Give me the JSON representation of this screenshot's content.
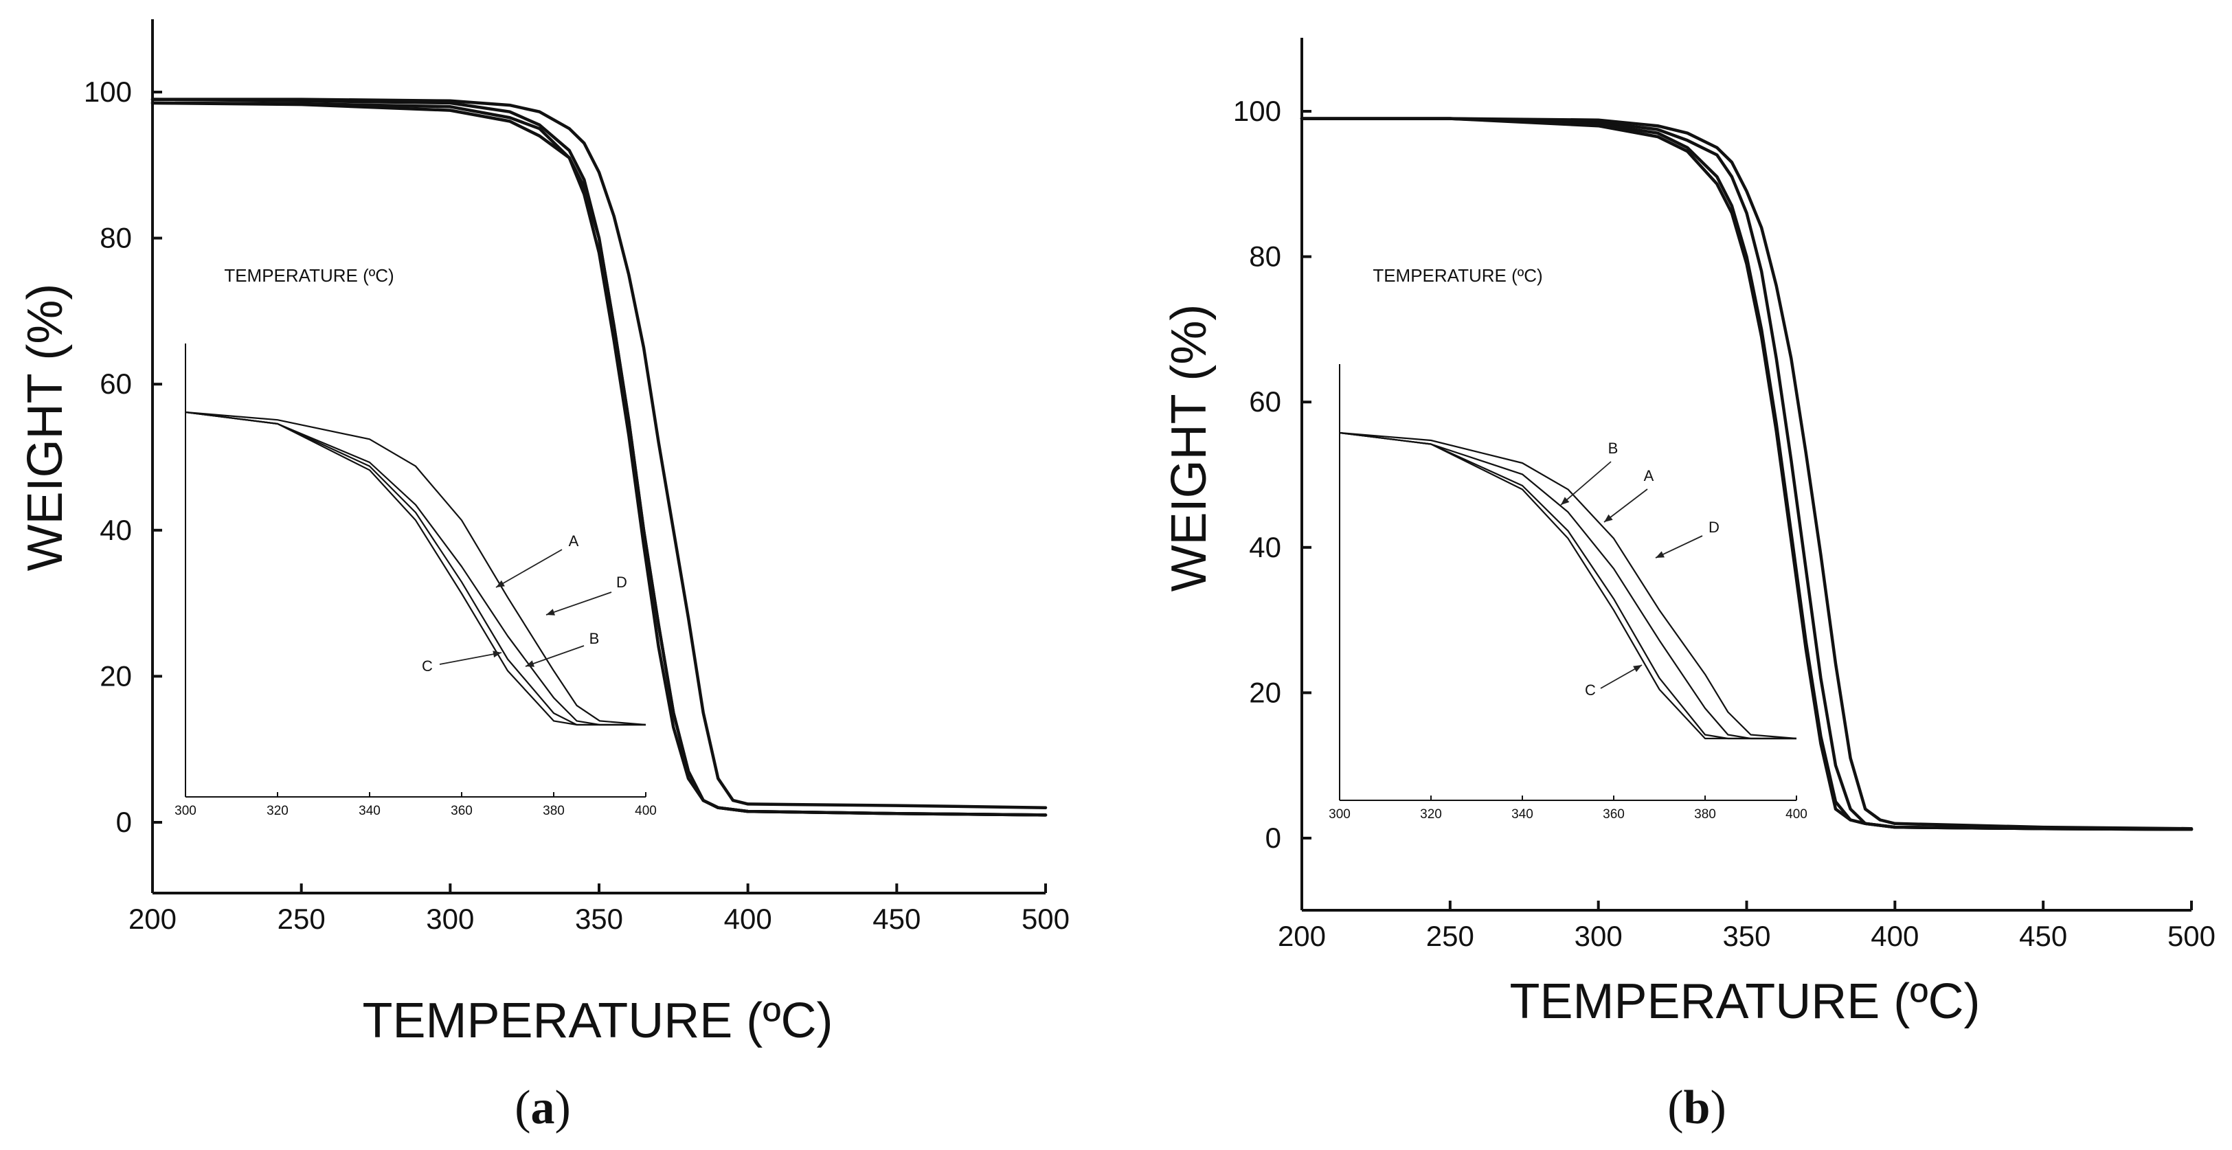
{
  "chart_data": [
    {
      "type": "line",
      "panel": "a",
      "xlabel": "TEMPERATURE (ºC)",
      "ylabel": "WEIGHT (%)",
      "xlim": [
        200,
        500
      ],
      "ylim": [
        -10,
        110
      ],
      "xticks": [
        200,
        250,
        300,
        350,
        400,
        450,
        500
      ],
      "yticks": [
        0,
        20,
        40,
        60,
        80,
        100
      ],
      "series": [
        {
          "name": "A",
          "x": [
            200,
            250,
            300,
            320,
            330,
            340,
            345,
            350,
            355,
            360,
            365,
            370,
            375,
            380,
            385,
            390,
            400,
            450,
            500
          ],
          "y": [
            99,
            98.8,
            98.5,
            97.3,
            95.5,
            92,
            88,
            80,
            68,
            55,
            40,
            27,
            15,
            7,
            3,
            2,
            1.5,
            1.2,
            1
          ]
        },
        {
          "name": "B",
          "x": [
            200,
            250,
            300,
            320,
            330,
            340,
            345,
            350,
            355,
            360,
            365,
            370,
            375,
            380,
            385,
            390,
            400,
            450,
            500
          ],
          "y": [
            98.5,
            98.3,
            97.5,
            96,
            94,
            91,
            87,
            80,
            68,
            55,
            40,
            27,
            15,
            7,
            3,
            2,
            1.5,
            1.2,
            1
          ]
        },
        {
          "name": "C",
          "x": [
            200,
            250,
            300,
            320,
            330,
            340,
            345,
            350,
            355,
            360,
            365,
            370,
            375,
            380,
            385,
            390,
            400,
            450,
            500
          ],
          "y": [
            98.5,
            98.4,
            98,
            96.5,
            95,
            91,
            86,
            78,
            66,
            53,
            38,
            24,
            13,
            6,
            3,
            2,
            1.5,
            1.2,
            1
          ]
        },
        {
          "name": "D",
          "x": [
            200,
            250,
            300,
            320,
            330,
            340,
            345,
            350,
            355,
            360,
            365,
            370,
            375,
            380,
            385,
            390,
            395,
            400,
            450,
            500
          ],
          "y": [
            99,
            99,
            98.8,
            98.2,
            97.3,
            95,
            93,
            89,
            83,
            75,
            65,
            52,
            40,
            28,
            15,
            6,
            3,
            2.5,
            2.3,
            2
          ]
        }
      ],
      "inset": {
        "xlabel": "TEMPERATURE (ºC)",
        "xlim": [
          300,
          400
        ],
        "xticks": [
          300,
          320,
          340,
          360,
          380,
          400
        ],
        "series": [
          {
            "name": "A",
            "x": [
              300,
              320,
              340,
              350,
              360,
              370,
              380,
              385,
              390,
              400
            ],
            "y": [
              100,
              97,
              87,
              76,
              60,
              42,
              26,
              20,
              19,
              19
            ]
          },
          {
            "name": "B",
            "x": [
              300,
              320,
              340,
              350,
              360,
              370,
              380,
              385,
              390,
              400
            ],
            "y": [
              100,
              97,
              86,
              74,
              56,
              36,
              22,
              19,
              19,
              19
            ]
          },
          {
            "name": "C",
            "x": [
              300,
              320,
              340,
              350,
              360,
              370,
              380,
              385,
              390,
              400
            ],
            "y": [
              100,
              97,
              85,
              72,
              53,
              33,
              20,
              19,
              19,
              19
            ]
          },
          {
            "name": "D",
            "x": [
              300,
              320,
              340,
              350,
              360,
              370,
              380,
              385,
              390,
              400
            ],
            "y": [
              100,
              98,
              93,
              86,
              72,
              52,
              33,
              24,
              20,
              19
            ]
          }
        ],
        "annotations": [
          "A",
          "D",
          "B",
          "C"
        ]
      }
    },
    {
      "type": "line",
      "panel": "b",
      "xlabel": "TEMPERATURE (ºC)",
      "ylabel": "WEIGHT (%)",
      "xlim": [
        200,
        500
      ],
      "ylim": [
        -10,
        110
      ],
      "xticks": [
        200,
        250,
        300,
        350,
        400,
        450,
        500
      ],
      "yticks": [
        0,
        20,
        40,
        60,
        80,
        100
      ],
      "series": [
        {
          "name": "A",
          "x": [
            200,
            250,
            300,
            320,
            330,
            340,
            345,
            350,
            355,
            360,
            365,
            370,
            375,
            380,
            385,
            390,
            400,
            450,
            500
          ],
          "y": [
            99,
            99,
            98.5,
            97.5,
            96,
            94,
            91,
            86,
            78,
            66,
            52,
            37,
            22,
            10,
            4,
            2,
            1.5,
            1.3,
            1.2
          ]
        },
        {
          "name": "B",
          "x": [
            200,
            250,
            300,
            320,
            330,
            340,
            345,
            350,
            355,
            360,
            365,
            370,
            375,
            380,
            385,
            390,
            400,
            450,
            500
          ],
          "y": [
            99,
            99,
            98.2,
            97,
            95,
            91,
            87,
            80,
            70,
            57,
            42,
            27,
            14,
            5,
            2.5,
            2,
            1.5,
            1.3,
            1.2
          ]
        },
        {
          "name": "C",
          "x": [
            200,
            250,
            300,
            320,
            330,
            340,
            345,
            350,
            355,
            360,
            365,
            370,
            375,
            380,
            385,
            390,
            400,
            450,
            500
          ],
          "y": [
            99,
            99,
            98,
            96.5,
            94.5,
            90,
            86,
            79,
            69,
            56,
            41,
            26,
            13,
            4,
            2.5,
            2,
            1.5,
            1.3,
            1.2
          ]
        },
        {
          "name": "D",
          "x": [
            200,
            250,
            300,
            320,
            330,
            340,
            345,
            350,
            355,
            360,
            365,
            370,
            375,
            380,
            385,
            390,
            395,
            400,
            450,
            500
          ],
          "y": [
            99,
            99,
            98.8,
            98,
            97,
            95,
            93,
            89,
            84,
            76,
            66,
            53,
            39,
            24,
            11,
            4,
            2.5,
            2,
            1.5,
            1.3
          ]
        }
      ],
      "inset": {
        "xlabel": "TEMPERATURE (ºC)",
        "xlim": [
          300,
          400
        ],
        "xticks": [
          300,
          320,
          340,
          360,
          380,
          400
        ],
        "series": [
          {
            "name": "A",
            "x": [
              300,
              320,
              340,
              350,
              360,
              370,
              380,
              385,
              390,
              400
            ],
            "y": [
              100,
              97,
              89,
              79,
              64,
              45,
              27,
              20,
              19,
              19
            ]
          },
          {
            "name": "B",
            "x": [
              300,
              320,
              340,
              350,
              360,
              370,
              380,
              385,
              390,
              400
            ],
            "y": [
              100,
              97,
              86,
              74,
              56,
              35,
              20,
              19,
              19,
              19
            ]
          },
          {
            "name": "C",
            "x": [
              300,
              320,
              340,
              350,
              360,
              370,
              380,
              385,
              390,
              400
            ],
            "y": [
              100,
              97,
              85,
              72,
              53,
              32,
              19,
              19,
              19,
              19
            ]
          },
          {
            "name": "D",
            "x": [
              300,
              320,
              340,
              350,
              360,
              370,
              380,
              385,
              390,
              400
            ],
            "y": [
              100,
              98,
              92,
              85,
              72,
              53,
              36,
              26,
              20,
              19
            ]
          }
        ],
        "annotations": [
          "B",
          "A",
          "D",
          "C"
        ]
      }
    }
  ],
  "panel_labels": {
    "a": {
      "open": "(",
      "letter": "a",
      "close": ")"
    },
    "b": {
      "open": "(",
      "letter": "b",
      "close": ")"
    }
  }
}
